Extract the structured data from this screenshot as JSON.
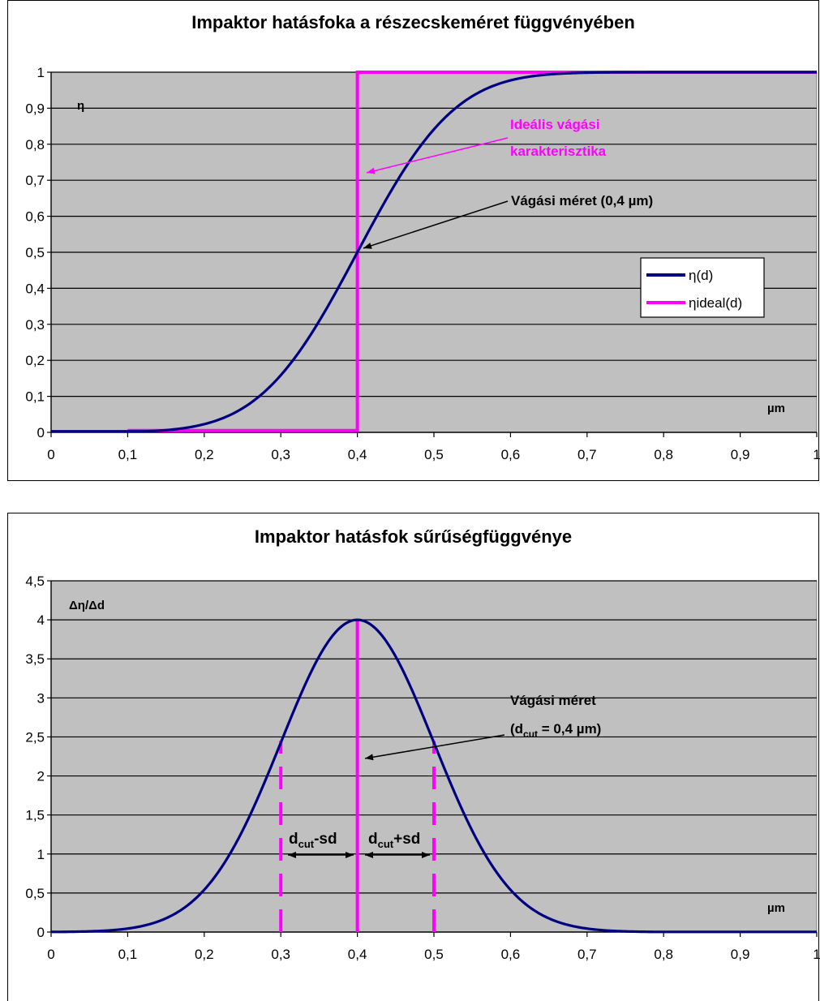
{
  "charts": [
    {
      "title": "Impaktor hatásfoka a részecskeméret függvényében",
      "ylabel": "η",
      "xlabel": "µm",
      "xticks": [
        "0",
        "0,1",
        "0,2",
        "0,3",
        "0,4",
        "0,5",
        "0,6",
        "0,7",
        "0,8",
        "0,9",
        "1"
      ],
      "yticks": [
        "0",
        "0,1",
        "0,2",
        "0,3",
        "0,4",
        "0,5",
        "0,6",
        "0,7",
        "0,8",
        "0,9",
        "1"
      ],
      "legend": [
        "η(d)",
        "ηideal(d)"
      ],
      "annotations": {
        "ideal": [
          "Ideális vágási",
          "karakterisztika"
        ],
        "cut": "Vágási méret (0,4 µm)"
      }
    },
    {
      "title": "Impaktor hatásfok sűrűségfüggvénye",
      "ylabel": "Δη/Δd",
      "xlabel": "µm",
      "xticks": [
        "0",
        "0,1",
        "0,2",
        "0,3",
        "0,4",
        "0,5",
        "0,6",
        "0,7",
        "0,8",
        "0,9",
        "1"
      ],
      "yticks": [
        "0",
        "0,5",
        "1",
        "1,5",
        "2",
        "2,5",
        "3",
        "3,5",
        "4",
        "4,5"
      ],
      "annotations": {
        "cut1": "Vágási méret",
        "cut2_prefix": "(d",
        "cut2_sub": "cut",
        "cut2_suffix": " = 0,4 µm)",
        "minus_main": "d",
        "minus_sub": "cut",
        "minus_suffix": "-sd",
        "plus_main": "d",
        "plus_sub": "cut",
        "plus_suffix": "+sd"
      }
    }
  ],
  "chart_data": [
    {
      "type": "line",
      "title": "Impaktor hatásfoka a részecskeméret függvényében",
      "xlabel": "µm",
      "ylabel": "η",
      "xlim": [
        0,
        1
      ],
      "ylim": [
        0,
        1
      ],
      "grid": true,
      "legend_position": "right",
      "series": [
        {
          "name": "η(d)",
          "color": "#000080",
          "x": [
            0,
            0.05,
            0.1,
            0.15,
            0.2,
            0.25,
            0.3,
            0.35,
            0.4,
            0.45,
            0.5,
            0.55,
            0.6,
            0.65,
            0.7,
            0.75,
            0.8,
            0.9,
            1.0
          ],
          "y": [
            0.002,
            0.003,
            0.006,
            0.012,
            0.028,
            0.067,
            0.16,
            0.31,
            0.5,
            0.69,
            0.84,
            0.933,
            0.975,
            0.992,
            0.998,
            1,
            1,
            1,
            1
          ]
        },
        {
          "name": "ηideal(d)",
          "color": "#ff00ff",
          "x": [
            0.1,
            0.4,
            0.4,
            0.7
          ],
          "y": [
            0.005,
            0.005,
            1,
            1
          ]
        }
      ]
    },
    {
      "type": "line",
      "title": "Impaktor hatásfok sűrűségfüggvénye",
      "xlabel": "µm",
      "ylabel": "Δη/Δd",
      "xlim": [
        0,
        1
      ],
      "ylim": [
        0,
        4.5
      ],
      "grid": true,
      "series": [
        {
          "color": "#000080",
          "x": [
            0,
            0.05,
            0.1,
            0.15,
            0.2,
            0.25,
            0.3,
            0.35,
            0.4,
            0.45,
            0.5,
            0.55,
            0.6,
            0.65,
            0.7,
            0.75,
            0.8,
            0.9,
            1.0
          ],
          "y": [
            0.002,
            0.02,
            0.05,
            0.2,
            0.5,
            1.2,
            2.4,
            3.5,
            4.0,
            3.5,
            2.4,
            1.2,
            0.5,
            0.2,
            0.05,
            0.02,
            0.005,
            0.002,
            0.002
          ]
        }
      ],
      "reference_lines": [
        {
          "x": 0.3,
          "color": "#ff00ff",
          "style": "dashed"
        },
        {
          "x": 0.4,
          "color": "#ff00ff",
          "style": "solid"
        },
        {
          "x": 0.5,
          "color": "#ff00ff",
          "style": "dashed"
        }
      ]
    }
  ]
}
